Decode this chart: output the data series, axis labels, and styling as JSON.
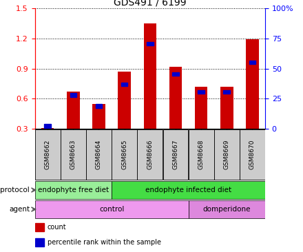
{
  "title": "GDS491 / 6199",
  "samples": [
    "GSM8662",
    "GSM8663",
    "GSM8664",
    "GSM8665",
    "GSM8666",
    "GSM8667",
    "GSM8668",
    "GSM8669",
    "GSM8670"
  ],
  "count_values": [
    0.31,
    0.67,
    0.55,
    0.87,
    1.35,
    0.92,
    0.72,
    0.72,
    1.19
  ],
  "percentile_values": [
    0.325,
    0.635,
    0.525,
    0.74,
    1.145,
    0.845,
    0.665,
    0.665,
    0.96
  ],
  "ylim_left": [
    0.3,
    1.5
  ],
  "ylim_right": [
    0,
    100
  ],
  "yticks_left": [
    0.3,
    0.6,
    0.9,
    1.2,
    1.5
  ],
  "yticks_right": [
    0,
    25,
    50,
    75,
    100
  ],
  "bar_color": "#cc0000",
  "percentile_color": "#0000cc",
  "bar_width": 0.5,
  "protocol_groups": [
    {
      "label": "endophyte free diet",
      "start": 0,
      "end": 3,
      "color": "#99ee99"
    },
    {
      "label": "endophyte infected diet",
      "start": 3,
      "end": 9,
      "color": "#44dd44"
    }
  ],
  "agent_groups": [
    {
      "label": "control",
      "start": 0,
      "end": 6,
      "color": "#ee99ee"
    },
    {
      "label": "domperidone",
      "start": 6,
      "end": 9,
      "color": "#dd88dd"
    }
  ],
  "protocol_label": "protocol",
  "agent_label": "agent",
  "legend_count_label": "count",
  "legend_percentile_label": "percentile rank within the sample",
  "title_fontsize": 10,
  "tick_fontsize": 8,
  "label_fontsize": 7.5,
  "row_fontsize": 7.5,
  "sample_fontsize": 6.5
}
